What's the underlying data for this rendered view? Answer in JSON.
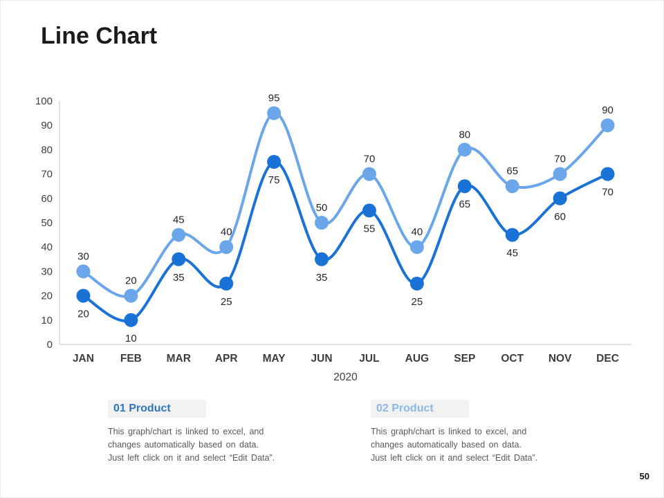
{
  "page": {
    "title": "Line Chart",
    "page_number": "50"
  },
  "chart_data": {
    "type": "line",
    "categories": [
      "JAN",
      "FEB",
      "MAR",
      "APR",
      "MAY",
      "JUN",
      "JUL",
      "AUG",
      "SEP",
      "OCT",
      "NOV",
      "DEC"
    ],
    "x_axis_label": "2020",
    "y_ticks": [
      0,
      10,
      20,
      30,
      40,
      50,
      60,
      70,
      80,
      90,
      100
    ],
    "ylim": [
      0,
      100
    ],
    "grid": "off",
    "series": [
      {
        "name": "01 Product",
        "color": "#1b72d6",
        "label_position": "below",
        "values": [
          20,
          10,
          35,
          25,
          75,
          35,
          55,
          25,
          65,
          45,
          60,
          70
        ]
      },
      {
        "name": "02 Product",
        "color": "#6ca6ea",
        "label_position": "above",
        "values": [
          30,
          20,
          45,
          40,
          95,
          50,
          70,
          40,
          80,
          65,
          70,
          90
        ]
      }
    ],
    "legend": [
      {
        "label": "01 Product",
        "color": "#2e75c2",
        "description_lines": [
          "This graph/chart is linked to excel, and",
          "changes automatically based on data.",
          "Just left click on it and select “Edit Data”."
        ]
      },
      {
        "label": "02 Product",
        "color": "#8ab8e8",
        "description_lines": [
          "This graph/chart is linked to excel, and",
          "changes automatically based on data.",
          "Just left click on it and select “Edit Data”."
        ]
      }
    ],
    "axis_color": "#d9d9d9",
    "tick_text_color": "#404040",
    "month_text_color": "#3d3d3d",
    "data_label_color": "#262626"
  }
}
